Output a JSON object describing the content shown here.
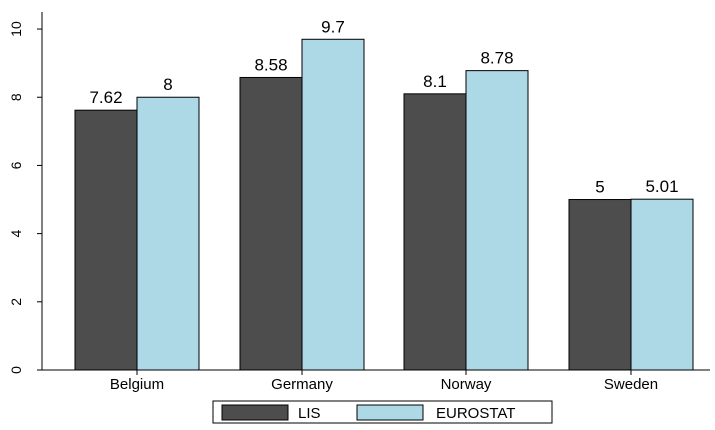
{
  "chart_data": {
    "type": "bar",
    "categories": [
      "Belgium",
      "Germany",
      "Norway",
      "Sweden"
    ],
    "series": [
      {
        "name": "LIS",
        "values": [
          7.62,
          8.58,
          8.1,
          5
        ],
        "labels": [
          "7.62",
          "8.58",
          "8.1",
          "5"
        ],
        "color": "#4d4d4d"
      },
      {
        "name": "EUROSTAT",
        "values": [
          8,
          9.7,
          8.78,
          5.01
        ],
        "labels": [
          "8",
          "9.7",
          "8.78",
          "5.01"
        ],
        "color": "#add8e6"
      }
    ],
    "yticks": [
      "0",
      "2",
      "4",
      "6",
      "8",
      "10"
    ],
    "ylim": [
      0,
      10.5
    ],
    "grid": false,
    "legend_position": "bottom"
  }
}
